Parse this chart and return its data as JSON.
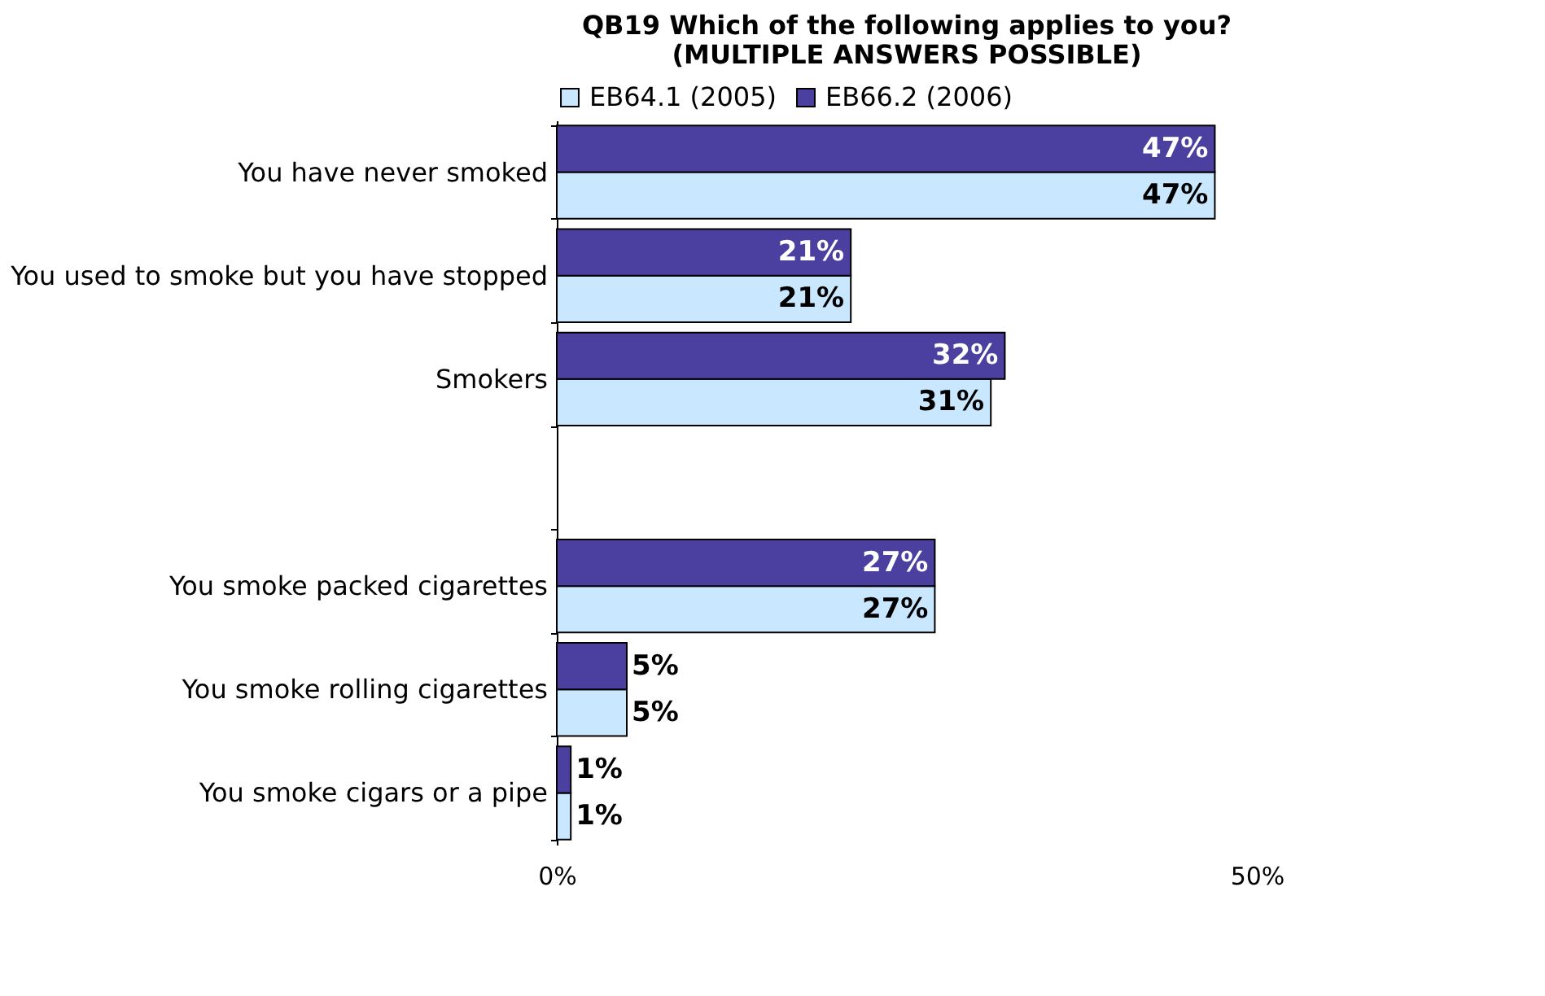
{
  "chart_data": {
    "type": "bar",
    "orientation": "horizontal",
    "title": "QB19 Which of the following applies to you?\n(MULTIPLE ANSWERS POSSIBLE)",
    "categories": [
      "You have never smoked",
      "You used to smoke but you have stopped",
      "Smokers",
      null,
      "You smoke packed cigarettes",
      "You smoke rolling cigarettes",
      "You smoke cigars or a pipe"
    ],
    "series": [
      {
        "name": "EB64.1 (2005)",
        "color": "#c9e8ff",
        "values": [
          47,
          21,
          31,
          null,
          27,
          5,
          1
        ],
        "value_labels": [
          "47%",
          "21%",
          "31%",
          null,
          "27%",
          "5%",
          "1%"
        ]
      },
      {
        "name": "EB66.2 (2006)",
        "color": "#4b3fa0",
        "values": [
          47,
          21,
          32,
          null,
          27,
          5,
          1
        ],
        "value_labels": [
          "47%",
          "21%",
          "32%",
          null,
          "27%",
          "5%",
          "1%"
        ]
      }
    ],
    "xlim": [
      0,
      50
    ],
    "xticks": [
      {
        "value": 0,
        "label": "0%"
      },
      {
        "value": 50,
        "label": "50%"
      }
    ],
    "grid": false,
    "legend": "top"
  }
}
